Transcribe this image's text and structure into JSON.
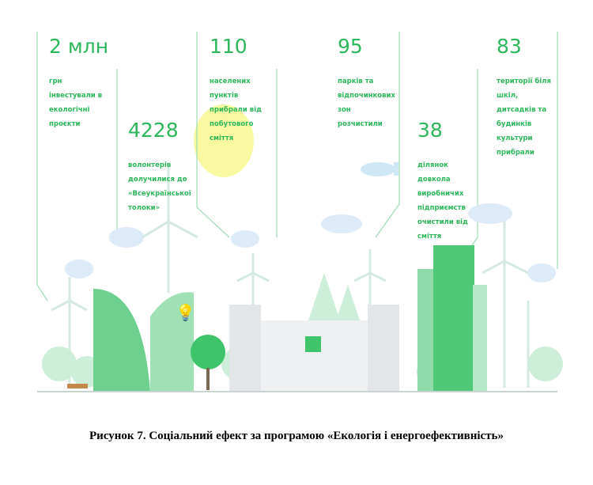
{
  "stats": [
    {
      "value": "2 млн",
      "text": "грн\nінвестували в\nекологічні\nпроєкти"
    },
    {
      "value": "4228",
      "text": "волонтерів\nдолучилися до\n«Всеукраїнської\nтолоки»"
    },
    {
      "value": "110",
      "text": "населених\nпунктів\nприбрали від\nпобутового\nсміття"
    },
    {
      "value": "95",
      "text": "парків та\nвідпочинкових\nзон\nрозчистили"
    },
    {
      "value": "38",
      "text": "ділянок\nдовкола\nвиробничих\nпідприємств\nочистили від\nсміття"
    },
    {
      "value": "83",
      "text": "території біля\nшкіл,\nдитсадків та\nбудинків\nкультури\nприбрали"
    }
  ],
  "caption": "Рисунок 7. Соціальний ефект за програмою «Екологія і енергоефективність»",
  "colors": {
    "accent": "#2bb75a",
    "line": "#9ddcb4",
    "cloud": "#dcebf7",
    "highlight": "#f6f78a"
  }
}
